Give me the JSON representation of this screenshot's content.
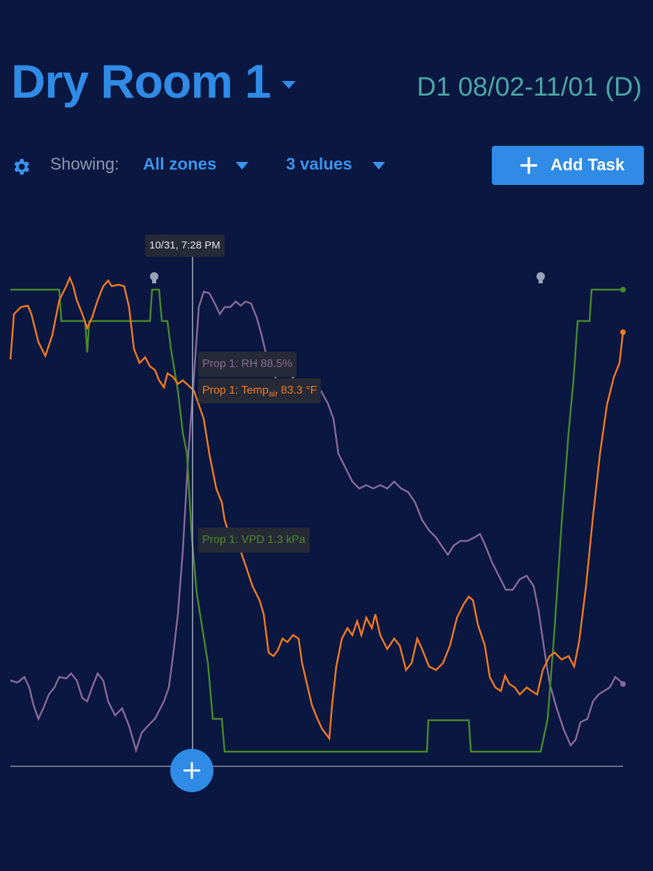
{
  "header": {
    "title": "Dry Room 1",
    "batch": "D1 08/02-11/01 (D)"
  },
  "toolbar": {
    "showing_label": "Showing:",
    "zones": "All zones",
    "values": "3 values",
    "add_task": "Add Task"
  },
  "chart": {
    "cursor_time": "10/31, 7:28 PM",
    "tooltips": {
      "rh": "Prop 1: RH 88.5%",
      "temp": {
        "prefix": "Prop 1: Temp",
        "subscript": "air",
        "value": "83.3 °F"
      },
      "vpd": "Prop 1: VPD 1.3 kPa"
    }
  }
}
